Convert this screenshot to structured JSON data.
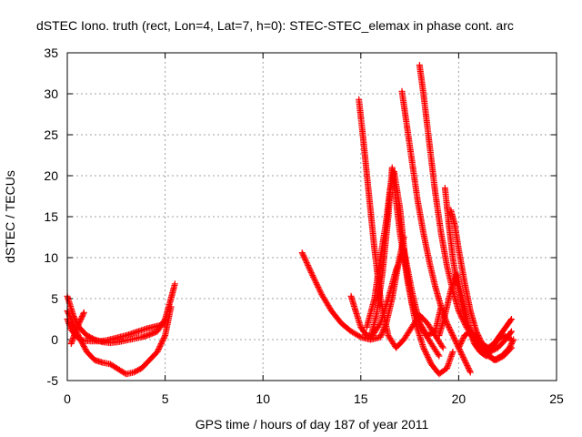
{
  "chart_data": {
    "type": "scatter",
    "title": "dSTEC Iono. truth (rect, Lon=4, Lat=7, h=0): STEC-STEC_elemax in phase cont. arc",
    "xlabel": "GPS time / hours of day 187 of year 2011",
    "ylabel": "dSTEC  / TECUs",
    "xlim": [
      0,
      25
    ],
    "ylim": [
      -5,
      35
    ],
    "xticks": [
      0,
      5,
      10,
      15,
      20,
      25
    ],
    "yticks": [
      -5,
      0,
      5,
      10,
      15,
      20,
      25,
      30,
      35
    ],
    "x_tick_labels": [
      "0",
      "5",
      "10",
      "15",
      "20",
      "25"
    ],
    "y_tick_labels": [
      "-5",
      "0",
      "5",
      "10",
      "15",
      "20",
      "25",
      "30",
      "35"
    ],
    "grid": true,
    "marker": "+",
    "color": "#ff0000",
    "series": [
      {
        "x": [
          0.0,
          0.3,
          0.6,
          1.0,
          1.4,
          1.8,
          2.2,
          2.6,
          3.0,
          3.4,
          3.8,
          4.2,
          4.6,
          5.0,
          5.3,
          5.5
        ],
        "y": [
          5.3,
          3.0,
          1.5,
          0.5,
          0.0,
          -0.3,
          -0.4,
          -0.3,
          -0.1,
          0.1,
          0.3,
          0.6,
          1.0,
          2.5,
          5.0,
          6.8
        ]
      },
      {
        "x": [
          0.0,
          0.2,
          0.5,
          0.8,
          1.2,
          1.6,
          2.0,
          2.5,
          3.0,
          3.5,
          4.0,
          4.5,
          5.0
        ],
        "y": [
          2.5,
          1.2,
          0.3,
          -0.1,
          -0.2,
          -0.2,
          -0.1,
          0.2,
          0.5,
          0.9,
          1.3,
          1.6,
          1.9
        ]
      },
      {
        "x": [
          0.0,
          0.3,
          0.6,
          1.0,
          1.4,
          1.8,
          2.2,
          2.6,
          3.0,
          3.4,
          3.8,
          4.2,
          4.6,
          5.0,
          5.3
        ],
        "y": [
          3.5,
          2.0,
          0.3,
          -1.5,
          -2.5,
          -2.8,
          -3.0,
          -3.6,
          -4.2,
          -4.0,
          -3.5,
          -2.5,
          -1.5,
          0.5,
          4.0
        ]
      },
      {
        "x": [
          0.2,
          0.35,
          0.5,
          0.7,
          0.85
        ],
        "y": [
          -0.5,
          0.5,
          1.5,
          2.5,
          3.3
        ]
      },
      {
        "x": [
          12.0,
          12.5,
          13.0,
          13.5,
          14.0,
          14.5,
          15.0,
          15.5,
          16.0,
          16.3,
          16.6,
          16.9,
          17.2
        ],
        "y": [
          10.6,
          8.0,
          5.5,
          3.5,
          2.0,
          1.0,
          0.3,
          0.0,
          0.3,
          2.0,
          5.0,
          9.0,
          12.5
        ]
      },
      {
        "x": [
          14.5,
          14.8,
          15.0,
          15.3,
          15.6,
          16.0,
          16.4,
          16.8,
          17.2,
          17.6,
          18.0,
          18.4,
          18.8,
          19.1
        ],
        "y": [
          5.3,
          3.0,
          1.5,
          0.5,
          0.5,
          2.0,
          5.0,
          8.5,
          11.0,
          6.0,
          2.0,
          0.5,
          1.0,
          4.0
        ]
      },
      {
        "x": [
          14.9,
          15.1,
          15.4,
          15.7,
          16.0,
          16.4,
          16.8,
          17.2,
          17.6,
          18.0,
          18.4,
          18.8,
          19.2
        ],
        "y": [
          29.3,
          25.0,
          18.0,
          11.0,
          5.0,
          0.5,
          -1.0,
          0.0,
          1.5,
          3.0,
          2.0,
          0.5,
          -1.0
        ]
      },
      {
        "x": [
          15.5,
          15.8,
          16.1,
          16.4,
          16.6,
          16.8,
          17.0,
          17.4,
          17.8,
          18.2,
          18.6,
          19.0,
          19.4,
          19.7
        ],
        "y": [
          0.3,
          3.0,
          8.0,
          15.0,
          21.0,
          17.0,
          13.0,
          7.0,
          2.0,
          -1.0,
          -3.0,
          -4.2,
          -3.5,
          -1.5
        ]
      },
      {
        "x": [
          15.3,
          15.7,
          16.0,
          16.3,
          16.5,
          16.7,
          17.0,
          17.3,
          17.6,
          17.9,
          18.2,
          18.6,
          19.0
        ],
        "y": [
          1.5,
          5.0,
          10.0,
          14.5,
          18.5,
          20.5,
          16.0,
          9.0,
          4.5,
          2.5,
          1.0,
          -0.5,
          -2.0
        ]
      },
      {
        "x": [
          17.1,
          17.3,
          17.6,
          17.9,
          18.2,
          18.5,
          18.8,
          19.1,
          19.4,
          19.8,
          20.2,
          20.6
        ],
        "y": [
          30.3,
          27.0,
          22.0,
          17.0,
          13.0,
          9.5,
          6.5,
          4.0,
          2.0,
          0.0,
          -2.0,
          -4.0
        ]
      },
      {
        "x": [
          18.0,
          18.2,
          18.5,
          18.8,
          19.1,
          19.4,
          19.7,
          20.0,
          20.4,
          20.8,
          21.2,
          21.6,
          22.0,
          22.4,
          22.7
        ],
        "y": [
          33.5,
          30.0,
          24.0,
          18.0,
          13.0,
          9.0,
          6.0,
          3.5,
          1.5,
          0.0,
          -1.0,
          -1.5,
          -1.0,
          0.0,
          1.0
        ]
      },
      {
        "x": [
          19.3,
          19.5,
          19.7,
          19.9,
          20.1,
          20.3,
          20.6,
          20.9,
          21.2,
          21.5,
          21.9,
          22.3,
          22.7
        ],
        "y": [
          18.5,
          14.0,
          10.0,
          7.0,
          5.0,
          3.0,
          1.0,
          -0.5,
          -1.5,
          -2.0,
          -2.5,
          -2.0,
          -1.0
        ]
      },
      {
        "x": [
          19.6,
          19.8,
          20.0,
          20.3,
          20.6,
          20.9,
          21.2,
          21.5,
          21.8,
          22.1,
          22.4,
          22.7
        ],
        "y": [
          15.8,
          14.0,
          11.0,
          7.0,
          3.5,
          1.0,
          -0.5,
          -1.0,
          -0.5,
          0.5,
          1.5,
          2.5
        ]
      },
      {
        "x": [
          19.0,
          19.3,
          19.6,
          19.9,
          20.2,
          20.5,
          20.8,
          21.1,
          21.4,
          21.7,
          22.0,
          22.3,
          22.7
        ],
        "y": [
          0.5,
          3.0,
          6.0,
          8.0,
          5.0,
          1.5,
          -0.5,
          -1.5,
          -2.0,
          -1.0,
          0.0,
          0.5,
          0.0
        ]
      },
      {
        "x": [
          20.0,
          20.3,
          20.6,
          21.0,
          21.4,
          21.8,
          22.2,
          22.6,
          22.8
        ],
        "y": [
          -1.0,
          0.5,
          1.0,
          0.0,
          -1.5,
          -2.5,
          -2.0,
          -1.0,
          0.0
        ]
      }
    ]
  }
}
